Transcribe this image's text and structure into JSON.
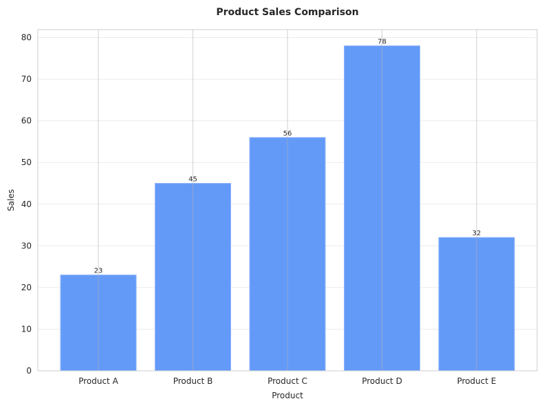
{
  "chart_data": {
    "type": "bar",
    "title": "Product Sales Comparison",
    "xlabel": "Product",
    "ylabel": "Sales",
    "categories": [
      "Product A",
      "Product B",
      "Product C",
      "Product D",
      "Product E"
    ],
    "values": [
      23,
      45,
      56,
      78,
      32
    ],
    "data_labels": [
      "23",
      "45",
      "56",
      "78",
      "32"
    ],
    "ylim": [
      0,
      81.9
    ],
    "yticks": [
      0,
      10,
      20,
      30,
      40,
      50,
      60,
      70,
      80
    ],
    "grid": true,
    "bar_color": "#639af8",
    "bar_edge_color": "#8fb6fa"
  }
}
